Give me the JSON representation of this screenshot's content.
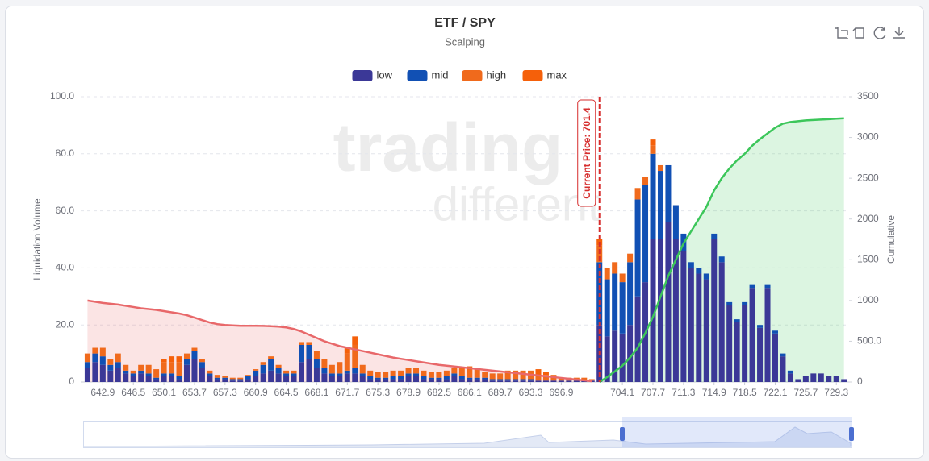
{
  "chart_data": {
    "type": "bar",
    "title": "ETF / SPY",
    "subtitle": "Scalping",
    "y_label": "Liquidation Volume",
    "y2_label": "Cumulative",
    "watermark": [
      "trading",
      "different"
    ],
    "annotation": {
      "text": "Current Price: 701.4",
      "x": 701.4,
      "color": "#d62d2d"
    },
    "stacked": true,
    "grid": true,
    "legend": "top",
    "xlim": [
      640.3,
      730.8
    ],
    "xticks": [
      642.9,
      646.5,
      650.1,
      653.7,
      657.3,
      660.9,
      664.5,
      668.1,
      671.7,
      675.3,
      678.9,
      682.5,
      686.1,
      689.7,
      693.3,
      696.9,
      704.1,
      707.7,
      711.3,
      714.9,
      718.5,
      722.1,
      725.7,
      729.3
    ],
    "ylim": [
      0,
      100
    ],
    "yticks": [
      0,
      {
        "value": 20,
        "label": "20.0"
      },
      {
        "value": 40,
        "label": "40.0"
      },
      {
        "value": 60,
        "label": "60.0"
      },
      {
        "value": 80,
        "label": "80.0"
      },
      {
        "value": 100,
        "label": "100.0"
      }
    ],
    "y2lim": [
      0,
      3500
    ],
    "y2ticks": [
      0,
      {
        "value": 500,
        "label": "500.0"
      },
      1000,
      1500,
      2000,
      2500,
      3000,
      3500
    ],
    "x": [
      641.1,
      642,
      642.9,
      643.8,
      644.7,
      645.6,
      646.5,
      647.4,
      648.3,
      649.2,
      650.1,
      651,
      651.9,
      652.8,
      653.7,
      654.6,
      655.5,
      656.4,
      657.3,
      658.2,
      659.1,
      660,
      660.9,
      661.8,
      662.7,
      663.6,
      664.5,
      665.4,
      666.3,
      667.2,
      668.1,
      669,
      669.9,
      670.8,
      671.7,
      672.6,
      673.5,
      674.4,
      675.3,
      676.2,
      677.1,
      678,
      678.9,
      679.8,
      680.7,
      681.6,
      682.5,
      683.4,
      684.3,
      685.2,
      686.1,
      687,
      687.9,
      688.8,
      689.7,
      690.6,
      691.5,
      692.4,
      693.3,
      694.2,
      695.1,
      696,
      696.9,
      697.8,
      698.7,
      699.6,
      700.5,
      701.4,
      702.3,
      703.2,
      704.1,
      705,
      705.9,
      706.8,
      707.7,
      708.6,
      709.5,
      710.4,
      711.3,
      712.2,
      713.1,
      714,
      714.9,
      715.8,
      716.7,
      717.6,
      718.5,
      719.4,
      720.3,
      721.2,
      722.1,
      723,
      723.9,
      724.8,
      725.7,
      726.6,
      727.5,
      728.4,
      729.3,
      730.2
    ],
    "series": [
      {
        "name": "low",
        "color": "#3b3897",
        "values": [
          5,
          7,
          6,
          4,
          5,
          3,
          2,
          3,
          2,
          1,
          2,
          2,
          1,
          6,
          8,
          5,
          2,
          1,
          1,
          0.5,
          0.5,
          1,
          2,
          3,
          4,
          3,
          2,
          2,
          7,
          8,
          5,
          3,
          2,
          2,
          3,
          3,
          2,
          1,
          1,
          1,
          1,
          1,
          2,
          2,
          1,
          1,
          1,
          1,
          2,
          1,
          1,
          1,
          1,
          0.5,
          0.5,
          0.5,
          0.5,
          0.5,
          0.5,
          0.5,
          0.5,
          0.5,
          0.5,
          0.5,
          0.5,
          0.5,
          0.5,
          20,
          16,
          18,
          17,
          20,
          30,
          35,
          50,
          50,
          56,
          50,
          46,
          40,
          38,
          36,
          50,
          42,
          27,
          21,
          27,
          33,
          19,
          33,
          17,
          9,
          3,
          1,
          2,
          3,
          3,
          2,
          2,
          1
        ]
      },
      {
        "name": "mid",
        "color": "#1150b4",
        "values": [
          2,
          3,
          3,
          2,
          2,
          1,
          1,
          1,
          1,
          0.5,
          1,
          1,
          1,
          2,
          3,
          2,
          1,
          0.5,
          0.5,
          0.5,
          0.5,
          1,
          2,
          3,
          4,
          2,
          1,
          1,
          6,
          5,
          3,
          2,
          1,
          1,
          1,
          2,
          1,
          1,
          0.5,
          0.5,
          1,
          1,
          1,
          1,
          1,
          0.5,
          0.5,
          1,
          1,
          1,
          0.5,
          0.5,
          0.5,
          0.5,
          0.5,
          0.5,
          0.5,
          0.5,
          0.5,
          0,
          0,
          0,
          0,
          0,
          0,
          0,
          0,
          22,
          20,
          20,
          18,
          22,
          34,
          34,
          30,
          24,
          20,
          12,
          6,
          2,
          2,
          2,
          2,
          2,
          1,
          1,
          1,
          1,
          1,
          1,
          1,
          1,
          1,
          0,
          0,
          0,
          0,
          0,
          0,
          0
        ]
      },
      {
        "name": "high",
        "color": "#f06a1c",
        "values": [
          3,
          2,
          3,
          2,
          3,
          2,
          1,
          2,
          3,
          3,
          4,
          4,
          5,
          2,
          1,
          1,
          1,
          1,
          0.5,
          0.5,
          0.5,
          0.5,
          0.5,
          1,
          1,
          1,
          1,
          1,
          1,
          1,
          3,
          3,
          3,
          4,
          6,
          8,
          3,
          2,
          2,
          2,
          2,
          2,
          2,
          2,
          2,
          2,
          2,
          2,
          2,
          3,
          4,
          3,
          2,
          2,
          2,
          3,
          3,
          3,
          3,
          2,
          2,
          2,
          1,
          1,
          1,
          1,
          0.5,
          6,
          4,
          4,
          3,
          3,
          4,
          3,
          3,
          2,
          0,
          0,
          0,
          0,
          0,
          0,
          0,
          0,
          0,
          0,
          0,
          0,
          0,
          0,
          0,
          0,
          0,
          0,
          0,
          0,
          0,
          0,
          0,
          0
        ]
      },
      {
        "name": "max",
        "color": "#f5600a",
        "values": [
          0,
          0,
          0,
          0,
          0,
          0,
          0,
          0,
          0,
          0,
          1,
          2,
          2,
          0,
          0,
          0,
          0,
          0,
          0,
          0,
          0,
          0,
          0,
          0,
          0,
          0,
          0,
          0,
          0,
          0,
          0,
          0,
          0,
          0,
          2,
          3,
          0,
          0,
          0,
          0,
          0,
          0,
          0,
          0,
          0,
          0,
          0,
          0,
          0,
          0,
          0,
          0,
          0,
          0,
          0,
          0,
          0,
          0,
          0,
          2,
          1,
          0,
          0,
          0,
          0,
          0,
          0,
          2,
          0,
          0,
          0,
          0,
          0,
          0,
          2,
          0,
          0,
          0,
          0,
          0,
          0,
          0,
          0,
          0,
          0,
          0,
          0,
          0,
          0,
          0,
          0,
          0,
          0,
          0,
          0,
          0,
          0,
          0,
          0,
          0
        ]
      }
    ],
    "cumulative": [
      {
        "color": "#e8686a",
        "axis": "y2",
        "values": [
          1000,
          985,
          970,
          960,
          950,
          935,
          920,
          905,
          895,
          885,
          870,
          855,
          840,
          820,
          790,
          760,
          730,
          710,
          700,
          695,
          690,
          690,
          690,
          688,
          685,
          680,
          670,
          650,
          620,
          580,
          540,
          500,
          470,
          440,
          420,
          400,
          380,
          360,
          340,
          320,
          300,
          285,
          270,
          255,
          240,
          225,
          210,
          200,
          190,
          180,
          170,
          160,
          150,
          140,
          130,
          120,
          110,
          100,
          90,
          80,
          70,
          60,
          50,
          40,
          30,
          20,
          10,
          null,
          null,
          null,
          null,
          null,
          null,
          null,
          null,
          null,
          null,
          null,
          null,
          null,
          null,
          null,
          null,
          null,
          null,
          null,
          null,
          null,
          null,
          null,
          null,
          null,
          null,
          null,
          null,
          null,
          null,
          null,
          null,
          null
        ]
      },
      {
        "color": "#3cc65a",
        "axis": "y2",
        "values": [
          null,
          null,
          null,
          null,
          null,
          null,
          null,
          null,
          null,
          null,
          null,
          null,
          null,
          null,
          null,
          null,
          null,
          null,
          null,
          null,
          null,
          null,
          null,
          null,
          null,
          null,
          null,
          null,
          null,
          null,
          null,
          null,
          null,
          null,
          null,
          null,
          null,
          null,
          null,
          null,
          null,
          null,
          null,
          null,
          null,
          null,
          null,
          null,
          null,
          null,
          null,
          null,
          null,
          null,
          null,
          null,
          null,
          null,
          null,
          null,
          null,
          null,
          null,
          null,
          null,
          null,
          null,
          0,
          60,
          130,
          200,
          300,
          420,
          600,
          800,
          1050,
          1300,
          1500,
          1700,
          1850,
          2000,
          2150,
          2350,
          2500,
          2620,
          2720,
          2800,
          2900,
          2980,
          3050,
          3120,
          3170,
          3190,
          3200,
          3210,
          3215,
          3220,
          3225,
          3230,
          3235
        ]
      }
    ]
  }
}
